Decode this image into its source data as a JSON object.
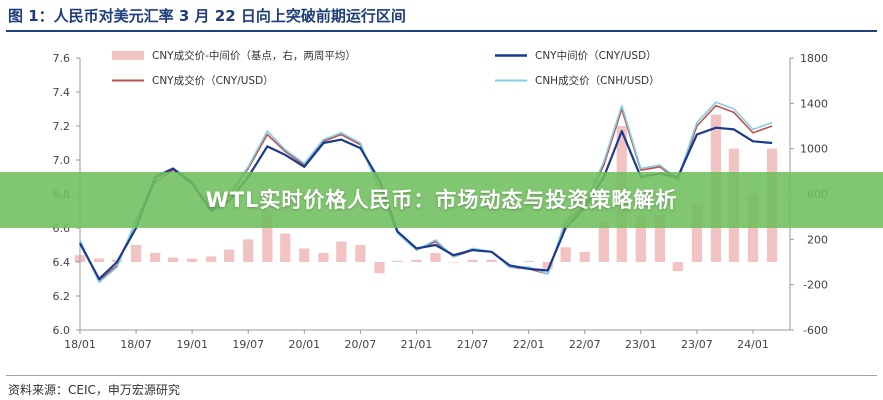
{
  "header": {
    "title": "图 1：人民币对美元汇率 3 月 22 日向上突破前期运行区间"
  },
  "banner": {
    "text": "WTL实时价格人民币：市场动态与投资策略解析"
  },
  "footer": {
    "source": "资料来源：CEIC，申万宏源研究"
  },
  "colors": {
    "title": "#1e3d7a",
    "spread_bars": "#f2c3c3",
    "cny_mid": "#1a3a8c",
    "cny_trade": "#c0504d",
    "cnh_trade": "#7ecfe6",
    "axis": "#999999",
    "banner": "#70be5c"
  },
  "chart_data": {
    "type": "line",
    "x_ticks": [
      "18/01",
      "18/07",
      "19/01",
      "19/07",
      "20/01",
      "20/07",
      "21/01",
      "21/07",
      "22/01",
      "22/07",
      "23/01",
      "23/07",
      "24/01"
    ],
    "left_axis": {
      "ticks": [
        "7.6",
        "7.4",
        "7.2",
        "7.0",
        "6.8",
        "6.6",
        "6.4",
        "6.2",
        "6.0"
      ],
      "ylim": [
        6.0,
        7.6
      ]
    },
    "right_axis": {
      "ticks": [
        "1800",
        "1400",
        "1000",
        "600",
        "200",
        "-200",
        "-600"
      ],
      "ylim": [
        -600,
        1800
      ]
    },
    "legend_position": "top",
    "x": [
      2018.0,
      2018.17,
      2018.33,
      2018.5,
      2018.67,
      2018.83,
      2019.0,
      2019.17,
      2019.33,
      2019.5,
      2019.67,
      2019.83,
      2020.0,
      2020.17,
      2020.33,
      2020.5,
      2020.67,
      2020.83,
      2021.0,
      2021.17,
      2021.33,
      2021.5,
      2021.67,
      2021.83,
      2022.0,
      2022.17,
      2022.33,
      2022.5,
      2022.67,
      2022.83,
      2023.0,
      2023.17,
      2023.33,
      2023.5,
      2023.67,
      2023.83,
      2024.0,
      2024.17
    ],
    "series": [
      {
        "name": "CNY中间价（CNY/USD）",
        "axis": "left",
        "values": [
          6.51,
          6.3,
          6.4,
          6.6,
          6.9,
          6.95,
          6.86,
          6.7,
          6.76,
          6.9,
          7.08,
          7.03,
          6.96,
          7.1,
          7.12,
          7.07,
          6.88,
          6.58,
          6.48,
          6.5,
          6.44,
          6.47,
          6.46,
          6.38,
          6.36,
          6.35,
          6.6,
          6.72,
          6.9,
          7.17,
          6.9,
          6.92,
          6.9,
          7.15,
          7.19,
          7.18,
          7.11,
          7.1
        ]
      },
      {
        "name": "CNY成交价（CNY/USD）",
        "axis": "left",
        "values": [
          6.52,
          6.29,
          6.38,
          6.64,
          6.87,
          6.94,
          6.87,
          6.71,
          6.79,
          6.95,
          7.15,
          7.05,
          6.97,
          7.11,
          7.15,
          7.09,
          6.83,
          6.58,
          6.47,
          6.52,
          6.43,
          6.47,
          6.46,
          6.37,
          6.36,
          6.33,
          6.63,
          6.73,
          6.97,
          7.3,
          6.94,
          6.96,
          6.88,
          7.2,
          7.32,
          7.28,
          7.16,
          7.2
        ]
      },
      {
        "name": "CNH成交价（CNH/USD）",
        "axis": "left",
        "values": [
          6.53,
          6.28,
          6.37,
          6.65,
          6.89,
          6.95,
          6.88,
          6.72,
          6.8,
          6.96,
          7.17,
          7.06,
          6.98,
          7.12,
          7.16,
          7.1,
          6.82,
          6.57,
          6.47,
          6.53,
          6.43,
          6.48,
          6.46,
          6.37,
          6.37,
          6.33,
          6.65,
          6.74,
          6.99,
          7.32,
          6.95,
          6.97,
          6.89,
          7.22,
          7.34,
          7.3,
          7.18,
          7.22
        ]
      },
      {
        "name": "CNY成交价-中间价（基点，右，两周平均）",
        "axis": "right",
        "type": "bar",
        "values": [
          60,
          30,
          20,
          150,
          80,
          40,
          30,
          50,
          110,
          200,
          450,
          250,
          120,
          80,
          180,
          150,
          -100,
          10,
          20,
          80,
          0,
          20,
          20,
          0,
          10,
          -60,
          130,
          90,
          350,
          1200,
          400,
          420,
          -80,
          500,
          1300,
          1000,
          600,
          1000
        ]
      }
    ]
  }
}
